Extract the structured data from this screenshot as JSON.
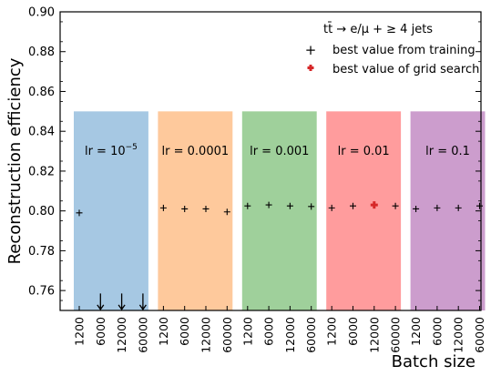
{
  "chart_data": {
    "type": "scatter",
    "ylabel": "Reconstruction efficiency",
    "xlabel": "Batch size",
    "ylim": [
      0.75,
      0.9
    ],
    "yticks": [
      "0.76",
      "0.78",
      "0.80",
      "0.82",
      "0.84",
      "0.86",
      "0.88",
      "0.90"
    ],
    "batch_sizes": [
      "1200",
      "6000",
      "12000",
      "60000"
    ],
    "groups": [
      {
        "label": "lr = 10",
        "label_sup": "−5",
        "color": "#a6c8e3",
        "values": [
          0.799,
          null,
          null,
          null
        ],
        "below_range": [
          false,
          true,
          true,
          true
        ]
      },
      {
        "label": "lr = 0.0001",
        "label_sup": "",
        "color": "#fec99c",
        "values": [
          0.8015,
          0.801,
          0.801,
          0.7995
        ],
        "below_range": [
          false,
          false,
          false,
          false
        ]
      },
      {
        "label": "lr = 0.001",
        "label_sup": "",
        "color": "#9fd09b",
        "values": [
          0.8025,
          0.803,
          0.8025,
          0.8022
        ],
        "below_range": [
          false,
          false,
          false,
          false
        ]
      },
      {
        "label": "lr = 0.01",
        "label_sup": "",
        "color": "#ff9c9d",
        "values": [
          0.8015,
          0.8025,
          0.803,
          0.8025
        ],
        "below_range": [
          false,
          false,
          false,
          false
        ],
        "grid_best_index": 2
      },
      {
        "label": "lr = 0.1",
        "label_sup": "",
        "color": "#cc9dcd",
        "values": [
          0.801,
          0.8015,
          0.8015,
          0.8025
        ],
        "below_range": [
          false,
          false,
          false,
          false
        ]
      }
    ],
    "legend": {
      "title_main": "tt̄ → e/μ + ≥ 4 jets",
      "entries": [
        {
          "name": "best value from training",
          "color": "#000000"
        },
        {
          "name": "best value of grid search",
          "color": "#d62728"
        }
      ],
      "placement": "top-right"
    },
    "band_range": [
      0.75,
      0.85
    ],
    "grid": false
  }
}
